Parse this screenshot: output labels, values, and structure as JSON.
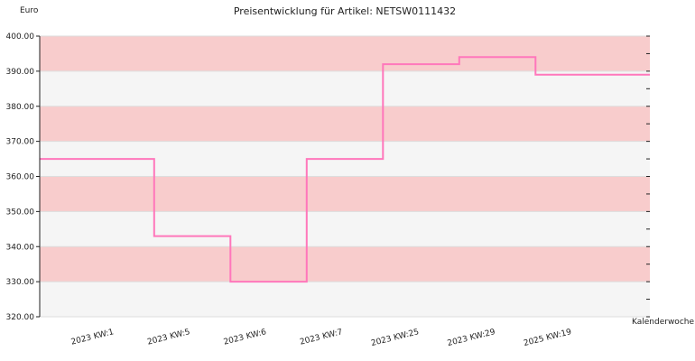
{
  "chart_data": {
    "type": "line",
    "step": true,
    "title": "Preisentwicklung für Artikel: NETSW0111432",
    "ylabel": "Euro",
    "xlabel": "Kalenderwoche",
    "categories": [
      "2023 KW:1",
      "2023 KW:5",
      "2023 KW:6",
      "2023 KW:7",
      "2023 KW:25",
      "2023 KW:29",
      "2025 KW:19"
    ],
    "ylim": [
      320,
      400
    ],
    "yticks": [
      "320.00",
      "330.00",
      "340.00",
      "350.00",
      "360.00",
      "370.00",
      "380.00",
      "390.00",
      "400.00"
    ],
    "series": [
      {
        "values": [
          365.0,
          343.0,
          330.0,
          365.0,
          392.0,
          394.0,
          389.0
        ]
      }
    ],
    "grid": true,
    "legend": "none",
    "colors": {
      "line": "#ff77bb",
      "band_dark": "#f8cccc",
      "band_light": "#f5f5f5",
      "axis": "#222222"
    }
  }
}
